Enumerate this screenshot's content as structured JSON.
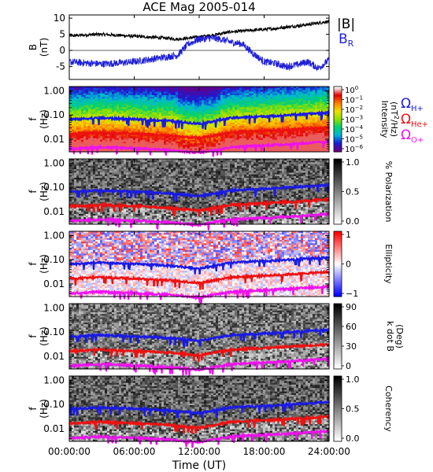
{
  "title": "ACE Mag 2005-014",
  "xlabel": "Time (UT)",
  "x_ticks": [
    "00:00:00",
    "06:00:00",
    "12:00:00",
    "18:00:00",
    "24:00:00"
  ],
  "legend": {
    "top": [
      {
        "label": "|B|",
        "color": "#000000"
      },
      {
        "label": "B",
        "sub": "R",
        "color": "#1f1fd6"
      }
    ],
    "gyro": [
      {
        "label": "Ω",
        "sub": "H+",
        "color": "#1a1ae6"
      },
      {
        "label": "Ω",
        "sub": "He+",
        "color": "#ee1111"
      },
      {
        "label": "Ω",
        "sub": "O+",
        "color": "#ee11ee"
      }
    ]
  },
  "chart_data": [
    {
      "type": "line",
      "panel": "B",
      "ylabel": "B",
      "yunit": "(nT)",
      "y_ticks": [
        "10",
        "5",
        "0",
        "-5"
      ],
      "ylim": [
        -9,
        11
      ],
      "xlim_hours": [
        0,
        24
      ],
      "series": [
        {
          "name": "|B|",
          "color": "#000000",
          "x": [
            0,
            1,
            2,
            3,
            4,
            5,
            6,
            7,
            8,
            9,
            10,
            11,
            12,
            13,
            14,
            15,
            16,
            17,
            18,
            19,
            20,
            21,
            22,
            23,
            24
          ],
          "y": [
            4.5,
            4.7,
            4.9,
            5.0,
            4.8,
            4.6,
            4.4,
            4.2,
            4.0,
            3.8,
            3.5,
            3.8,
            4.2,
            4.6,
            5.2,
            5.8,
            6.0,
            6.3,
            6.5,
            6.8,
            7.2,
            7.6,
            8.0,
            8.5,
            9.0
          ]
        },
        {
          "name": "B",
          "color": "#1f1fd6",
          "x": [
            0,
            1,
            2,
            3,
            4,
            5,
            6,
            7,
            8,
            9,
            10,
            11,
            12,
            13,
            14,
            15,
            16,
            17,
            18,
            19,
            20,
            21,
            22,
            23,
            24
          ],
          "y": [
            -3.5,
            -3.8,
            -4.0,
            -4.2,
            -4.0,
            -3.8,
            -3.5,
            -3.0,
            -2.5,
            -2.0,
            -1.5,
            2.0,
            3.5,
            3.8,
            3.5,
            2.5,
            2.0,
            -1.0,
            -3.5,
            -4.0,
            -5.0,
            -4.5,
            -3.5,
            -5.5,
            -3.0
          ]
        }
      ]
    },
    {
      "type": "heatmap",
      "panel": "intensity",
      "ylabel": "f",
      "yunit": "(Hz)",
      "y_ticks": [
        "1.00",
        "0.10",
        "0.01"
      ],
      "ylim_hz": [
        0.003,
        1.5
      ],
      "colorbar_label": "Intensity",
      "colorbar_unit": "(nT",
      "colorbar_unit_sup": "2",
      "colorbar_unit_tail": "/Hz)",
      "colorbar_ticks": [
        {
          "base": "10",
          "exp": "0"
        },
        {
          "base": "10",
          "exp": "−1"
        },
        {
          "base": "10",
          "exp": "−2"
        },
        {
          "base": "10",
          "exp": "−3"
        },
        {
          "base": "10",
          "exp": "−4"
        },
        {
          "base": "10",
          "exp": "−5"
        },
        {
          "base": "10",
          "exp": "−6"
        }
      ],
      "colorscale": [
        "#6a0080",
        "#1a1ad6",
        "#00b8d8",
        "#00d070",
        "#90e000",
        "#f0e000",
        "#ff8000",
        "#e00000",
        "#ffffff"
      ]
    },
    {
      "type": "heatmap",
      "panel": "polarization",
      "ylabel": "f",
      "yunit": "(Hz)",
      "y_ticks": [
        "1.00",
        "0.10",
        "0.01"
      ],
      "colorbar_label": "% Polarization",
      "colorbar_ticks": [
        "1.0",
        "0.5",
        "0.0"
      ],
      "colorscale": [
        "#ffffff",
        "#000000"
      ]
    },
    {
      "type": "heatmap",
      "panel": "ellipticity",
      "ylabel": "f",
      "yunit": "(Hz)",
      "y_ticks": [
        "1.00",
        "0.10",
        "0.01"
      ],
      "colorbar_label": "Ellipticity",
      "colorbar_ticks": [
        "1",
        "0",
        "−1"
      ],
      "colorscale": [
        "#0000ff",
        "#ffffff",
        "#ff0000"
      ]
    },
    {
      "type": "heatmap",
      "panel": "kdotb",
      "ylabel": "f",
      "yunit": "(Hz)",
      "y_ticks": [
        "1.00",
        "0.10",
        "0.01"
      ],
      "colorbar_label": "k dot B",
      "colorbar_unit": "(Deg)",
      "colorbar_ticks": [
        "90",
        "60",
        "30",
        "0"
      ],
      "colorscale": [
        "#ffffff",
        "#000000"
      ]
    },
    {
      "type": "heatmap",
      "panel": "coherency",
      "ylabel": "f",
      "yunit": "(Hz)",
      "y_ticks": [
        "1.00",
        "0.10",
        "0.01"
      ],
      "colorbar_label": "Coherency",
      "colorbar_ticks": [
        "1.0",
        "0.5",
        "0.0"
      ],
      "colorscale": [
        "#ffffff",
        "#000000"
      ]
    }
  ],
  "gyrofrequency_hz": {
    "hours": [
      0,
      1,
      2,
      3,
      4,
      5,
      6,
      7,
      8,
      9,
      10,
      11,
      12,
      13,
      14,
      15,
      16,
      17,
      18,
      19,
      20,
      21,
      22,
      23,
      24
    ],
    "H+": [
      0.066,
      0.068,
      0.073,
      0.075,
      0.072,
      0.07,
      0.067,
      0.064,
      0.061,
      0.058,
      0.053,
      0.048,
      0.044,
      0.052,
      0.063,
      0.076,
      0.08,
      0.084,
      0.088,
      0.092,
      0.098,
      0.104,
      0.11,
      0.118,
      0.125
    ],
    "He+": [
      0.0165,
      0.017,
      0.018,
      0.019,
      0.018,
      0.0175,
      0.0168,
      0.016,
      0.015,
      0.0145,
      0.013,
      0.012,
      0.011,
      0.013,
      0.016,
      0.019,
      0.02,
      0.021,
      0.022,
      0.023,
      0.0245,
      0.026,
      0.0275,
      0.0295,
      0.031
    ],
    "O+": [
      0.0041,
      0.0042,
      0.0045,
      0.0047,
      0.0045,
      0.0044,
      0.0042,
      0.004,
      0.0038,
      0.0036,
      0.0033,
      0.003,
      0.0028,
      0.0033,
      0.004,
      0.0047,
      0.005,
      0.0053,
      0.0055,
      0.0058,
      0.0061,
      0.0065,
      0.0069,
      0.0074,
      0.0078
    ]
  }
}
